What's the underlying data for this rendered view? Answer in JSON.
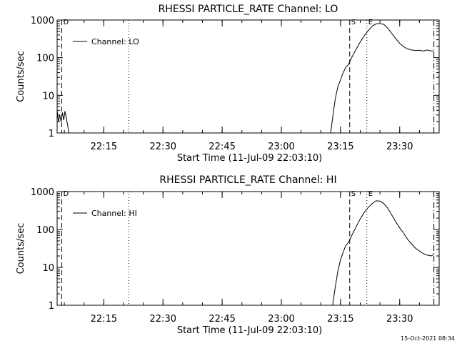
{
  "footer": "15-Oct-2021 08:34",
  "chart_data": [
    {
      "type": "line",
      "title": "RHESSI PARTICLE_RATE Channel: LO",
      "xlabel": "Start Time (11-Jul-09 22:03:10)",
      "ylabel": "Counts/sec",
      "y_scale": "log",
      "ylim": [
        1,
        1000
      ],
      "xlim": [
        "22:03:10",
        "23:40:00"
      ],
      "x_ticks": [
        "22:15",
        "22:30",
        "22:45",
        "23:00",
        "23:15",
        "23:30"
      ],
      "y_ticks": [
        "1",
        "10",
        "100",
        "1000"
      ],
      "legend": {
        "label": "Channel: LO",
        "position": "top-left"
      },
      "markers": [
        {
          "time": "22:04:20",
          "style": "dashed",
          "label": "D"
        },
        {
          "time": "22:21:20",
          "style": "dotted",
          "label": ""
        },
        {
          "time": "23:17:20",
          "style": "dashed",
          "label": "S"
        },
        {
          "time": "23:21:40",
          "style": "dotted",
          "label": "E"
        },
        {
          "time": "23:38:40",
          "style": "dashdot",
          "label": ""
        }
      ],
      "series": [
        {
          "name": "Channel: LO",
          "segments": [
            [
              [
                "22:03:10",
                4.0
              ],
              [
                "22:03:30",
                2.0
              ],
              [
                "22:03:50",
                3.0
              ],
              [
                "22:04:10",
                2.0
              ],
              [
                "22:04:30",
                3.5
              ],
              [
                "22:04:50",
                2.2
              ],
              [
                "22:05:10",
                3.8
              ],
              [
                "22:05:30",
                2.5
              ],
              [
                "22:05:50",
                1.6
              ],
              [
                "22:06:10",
                1.0
              ]
            ],
            [
              [
                "23:12:30",
                1.0
              ],
              [
                "23:13:00",
                2.5
              ],
              [
                "23:13:40",
                8.0
              ],
              [
                "23:14:20",
                17
              ],
              [
                "23:15:00",
                26
              ],
              [
                "23:15:40",
                40
              ],
              [
                "23:16:20",
                55
              ],
              [
                "23:17:00",
                65
              ],
              [
                "23:18:00",
                110
              ],
              [
                "23:19:00",
                170
              ],
              [
                "23:20:00",
                260
              ],
              [
                "23:21:00",
                380
              ],
              [
                "23:22:00",
                520
              ],
              [
                "23:23:00",
                680
              ],
              [
                "23:24:00",
                790
              ],
              [
                "23:25:00",
                810
              ],
              [
                "23:26:00",
                760
              ],
              [
                "23:27:00",
                600
              ],
              [
                "23:28:00",
                440
              ],
              [
                "23:29:00",
                320
              ],
              [
                "23:30:00",
                240
              ],
              [
                "23:31:00",
                195
              ],
              [
                "23:32:00",
                170
              ],
              [
                "23:33:00",
                160
              ],
              [
                "23:34:00",
                155
              ],
              [
                "23:35:00",
                158
              ],
              [
                "23:36:00",
                150
              ],
              [
                "23:37:00",
                160
              ],
              [
                "23:38:00",
                150
              ],
              [
                "23:38:40",
                150
              ]
            ]
          ]
        }
      ]
    },
    {
      "type": "line",
      "title": "RHESSI PARTICLE_RATE Channel: HI",
      "xlabel": "Start Time (11-Jul-09 22:03:10)",
      "ylabel": "Counts/sec",
      "y_scale": "log",
      "ylim": [
        1,
        1000
      ],
      "xlim": [
        "22:03:10",
        "23:40:00"
      ],
      "x_ticks": [
        "22:15",
        "22:30",
        "22:45",
        "23:00",
        "23:15",
        "23:30"
      ],
      "y_ticks": [
        "1",
        "10",
        "100",
        "1000"
      ],
      "legend": {
        "label": "Channel: HI",
        "position": "top-left"
      },
      "markers": [
        {
          "time": "22:04:20",
          "style": "dashed",
          "label": "D"
        },
        {
          "time": "22:21:20",
          "style": "dotted",
          "label": ""
        },
        {
          "time": "23:17:20",
          "style": "dashed",
          "label": "S"
        },
        {
          "time": "23:21:40",
          "style": "dotted",
          "label": "E"
        },
        {
          "time": "23:38:40",
          "style": "dashdot",
          "label": ""
        }
      ],
      "series": [
        {
          "name": "Channel: HI",
          "segments": [
            [
              [
                "23:13:00",
                1.0
              ],
              [
                "23:13:40",
                3.0
              ],
              [
                "23:14:20",
                8.0
              ],
              [
                "23:15:00",
                16
              ],
              [
                "23:15:40",
                25
              ],
              [
                "23:16:20",
                38
              ],
              [
                "23:17:00",
                45
              ],
              [
                "23:18:00",
                75
              ],
              [
                "23:19:00",
                120
              ],
              [
                "23:20:00",
                190
              ],
              [
                "23:21:00",
                280
              ],
              [
                "23:22:00",
                380
              ],
              [
                "23:23:00",
                480
              ],
              [
                "23:24:00",
                570
              ],
              [
                "23:25:00",
                560
              ],
              [
                "23:26:00",
                480
              ],
              [
                "23:27:00",
                360
              ],
              [
                "23:28:00",
                240
              ],
              [
                "23:29:00",
                160
              ],
              [
                "23:30:00",
                110
              ],
              [
                "23:31:00",
                80
              ],
              [
                "23:32:00",
                55
              ],
              [
                "23:33:00",
                42
              ],
              [
                "23:34:00",
                32
              ],
              [
                "23:35:00",
                27
              ],
              [
                "23:36:00",
                23
              ],
              [
                "23:37:00",
                21
              ],
              [
                "23:38:00",
                20
              ],
              [
                "23:38:40",
                22
              ]
            ]
          ]
        }
      ]
    }
  ]
}
